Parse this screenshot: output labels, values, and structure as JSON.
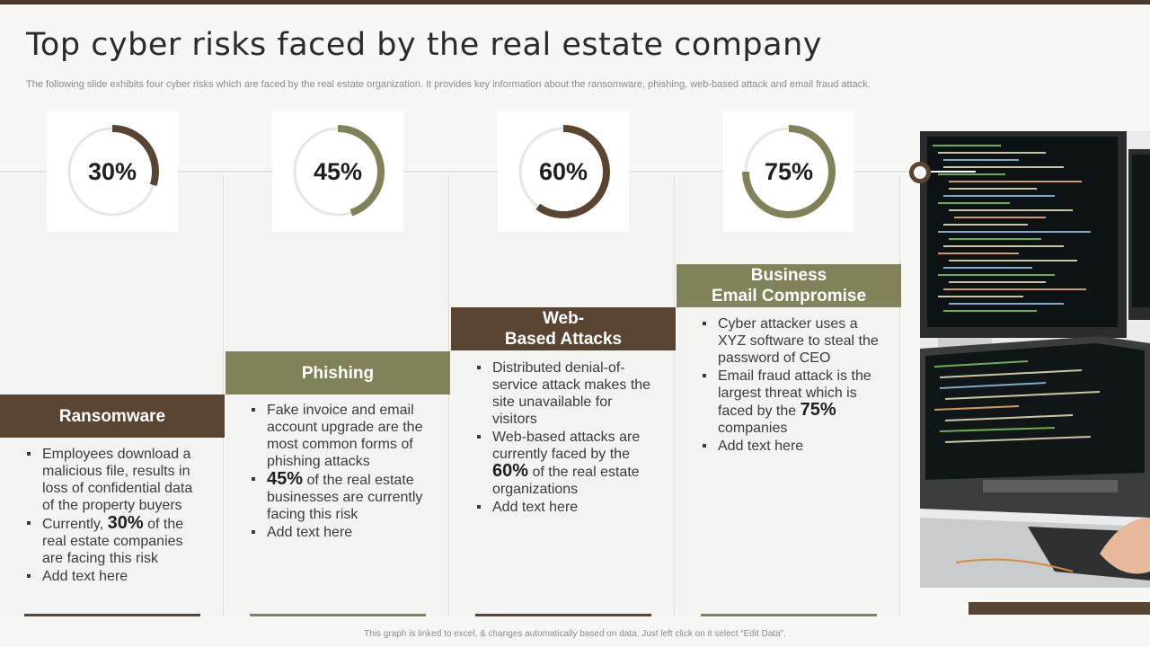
{
  "title": "Top cyber risks faced by the real estate company",
  "subtitle": "The following slide exhibits four cyber risks which are faced by the real estate organization. It provides key information about the ransomware, phishing, web-based attack and email fraud attack.",
  "colors": {
    "brown": "#5a4532",
    "olive": "#82825a",
    "ring_track": "#e6e6e6"
  },
  "risks": [
    {
      "percent": "30%",
      "fraction": 0.3,
      "color": "#5a4532",
      "header": "Ransomware",
      "bullets": [
        {
          "text": "Employees download a malicious file, results in loss of confidential data of the property buyers"
        },
        {
          "pre": "Currently, ",
          "big": "30%",
          "post": " of the real estate companies are facing this risk"
        },
        {
          "text": "Add text here"
        }
      ]
    },
    {
      "percent": "45%",
      "fraction": 0.45,
      "color": "#82825a",
      "header": "Phishing",
      "bullets": [
        {
          "text": "Fake invoice and email account upgrade are the most common forms of phishing attacks"
        },
        {
          "pre": "",
          "big": "45%",
          "post": " of the real estate businesses are currently facing this risk"
        },
        {
          "text": "Add text here"
        }
      ]
    },
    {
      "percent": "60%",
      "fraction": 0.6,
      "color": "#5a4532",
      "header": "Web-\nBased Attacks",
      "bullets": [
        {
          "text": "Distributed denial-of-service attack makes the site unavailable for visitors"
        },
        {
          "pre": "Web-based attacks are currently faced by the ",
          "big": "60%",
          "post": " of the real estate organizations"
        },
        {
          "text": "Add text here"
        }
      ]
    },
    {
      "percent": "75%",
      "fraction": 0.75,
      "color": "#82825a",
      "header": "Business\nEmail Compromise",
      "bullets": [
        {
          "text": "Cyber attacker uses a XYZ software to steal the password of CEO"
        },
        {
          "pre": "Email fraud attack is the largest threat which is faced by the ",
          "big": "75%",
          "post": " companies"
        },
        {
          "text": "Add text here"
        }
      ]
    }
  ],
  "footer": "This graph is linked to excel, & changes automatically based on data. Just left click on it select “Edit Data”."
}
